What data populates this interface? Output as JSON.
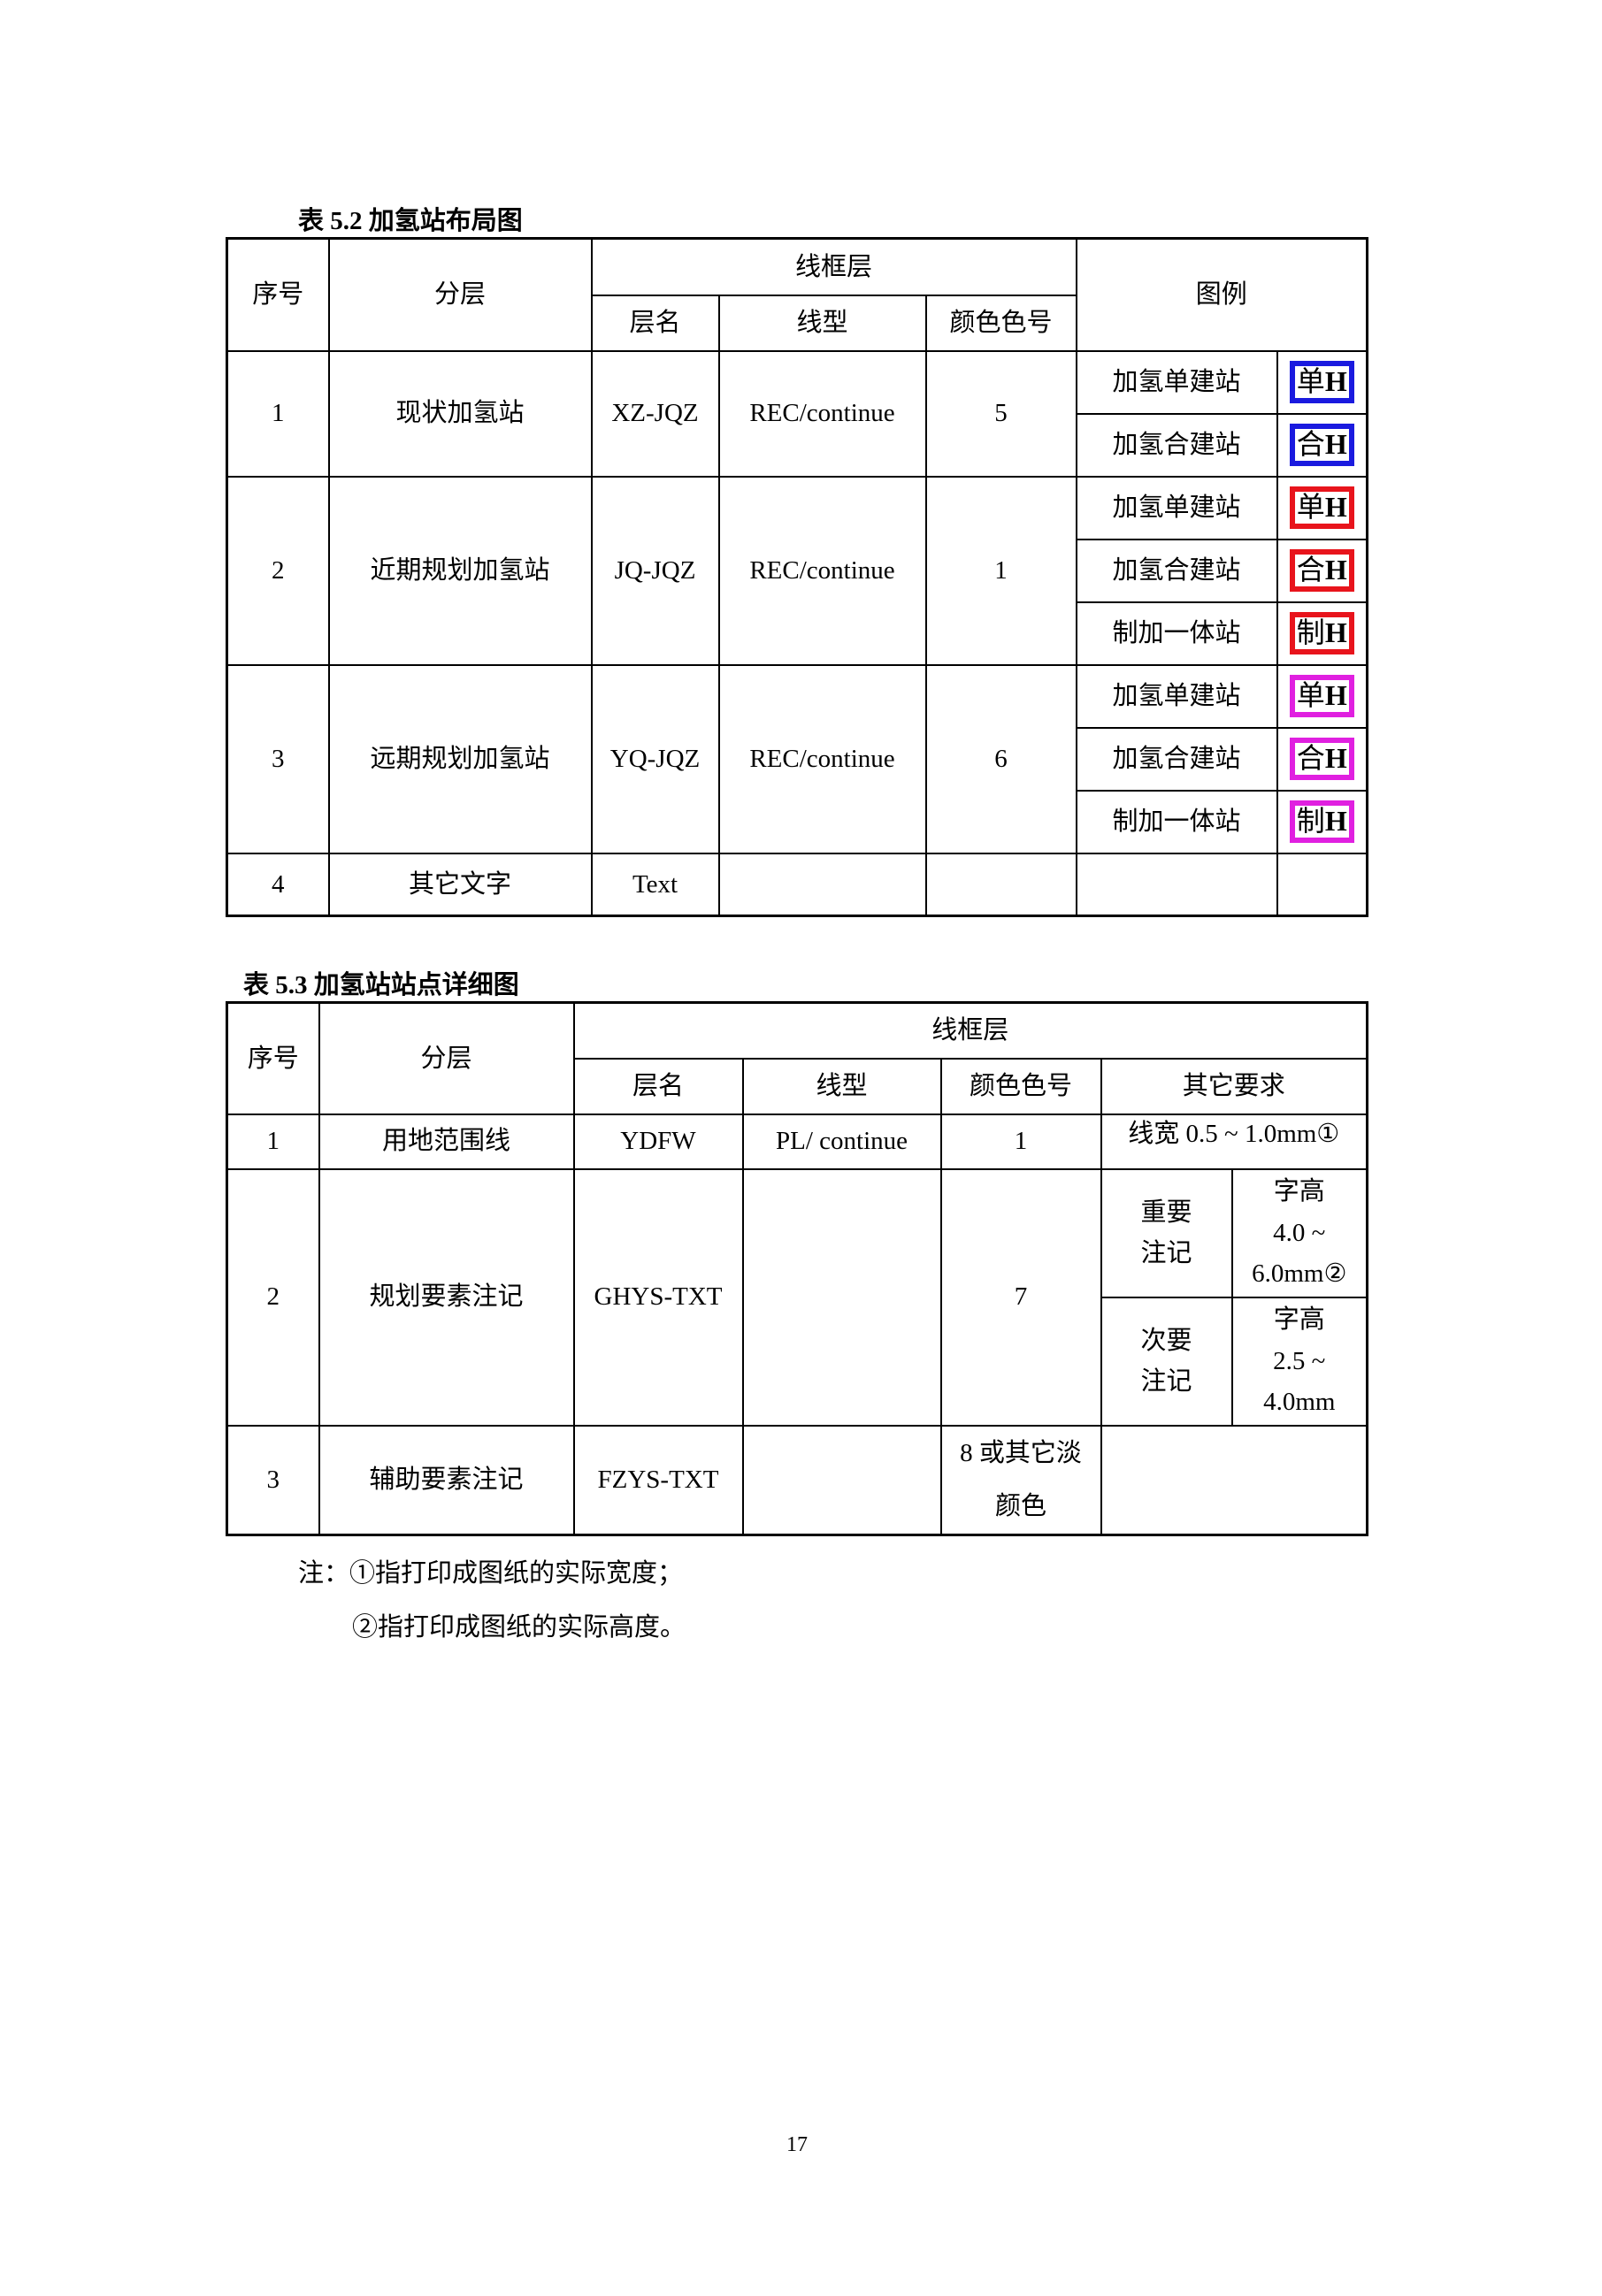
{
  "table1": {
    "caption": "表 5.2  加氢站布局图",
    "headers": {
      "no": "序号",
      "layer": "分层",
      "frame_layer": "线框层",
      "layer_name": "层名",
      "line_type": "线型",
      "color_no": "颜色色号",
      "legend": "图例"
    },
    "rows": [
      {
        "no": "1",
        "layer": "现状加氢站",
        "layer_name": "XZ-JQZ",
        "line_type": "REC/continue",
        "color_no": "5",
        "color": "#1a1adf",
        "legend": [
          {
            "label": "加氢单建站",
            "icon_char": "单",
            "icon_h": "H"
          },
          {
            "label": "加氢合建站",
            "icon_char": "合",
            "icon_h": "H"
          }
        ]
      },
      {
        "no": "2",
        "layer": "近期规划加氢站",
        "layer_name": "JQ-JQZ",
        "line_type": "REC/continue",
        "color_no": "1",
        "color": "#e8141c",
        "legend": [
          {
            "label": "加氢单建站",
            "icon_char": "单",
            "icon_h": "H"
          },
          {
            "label": "加氢合建站",
            "icon_char": "合",
            "icon_h": "H"
          },
          {
            "label": "制加一体站",
            "icon_char": "制",
            "icon_h": "H"
          }
        ]
      },
      {
        "no": "3",
        "layer": "远期规划加氢站",
        "layer_name": "YQ-JQZ",
        "line_type": "REC/continue",
        "color_no": "6",
        "color": "#e020e0",
        "legend": [
          {
            "label": "加氢单建站",
            "icon_char": "单",
            "icon_h": "H"
          },
          {
            "label": "加氢合建站",
            "icon_char": "合",
            "icon_h": "H"
          },
          {
            "label": "制加一体站",
            "icon_char": "制",
            "icon_h": "H"
          }
        ]
      },
      {
        "no": "4",
        "layer": "其它文字",
        "layer_name": "Text",
        "line_type": "",
        "color_no": ""
      }
    ]
  },
  "table2": {
    "caption": "表 5.3  加氢站站点详细图",
    "headers": {
      "no": "序号",
      "layer": "分层",
      "frame_layer": "线框层",
      "layer_name": "层名",
      "line_type": "线型",
      "color_no": "颜色色号",
      "other": "其它要求"
    },
    "rows": [
      {
        "no": "1",
        "layer": "用地范围线",
        "layer_name": "YDFW",
        "line_type": "PL/ continue",
        "color_no": "1",
        "other": "线宽 0.5 ~ 1.0mm①"
      },
      {
        "no": "2",
        "layer": "规划要素注记",
        "layer_name": "GHYS-TXT",
        "line_type": "",
        "color_no": "7",
        "sub": [
          {
            "type": "重要注记",
            "req_line1": "字高",
            "req_line2": "4.0 ~",
            "req_line3": "6.0mm②"
          },
          {
            "type": "次要注记",
            "req_line1": "字高",
            "req_line2": "2.5 ~",
            "req_line3": "4.0mm"
          }
        ]
      },
      {
        "no": "3",
        "layer": "辅助要素注记",
        "layer_name": "FZYS-TXT",
        "line_type": "",
        "color_no": "8 或其它淡颜色",
        "other": ""
      }
    ]
  },
  "notes": {
    "line1": "注：①指打印成图纸的实际宽度；",
    "line2": "②指打印成图纸的实际高度。"
  },
  "page_number": "17"
}
